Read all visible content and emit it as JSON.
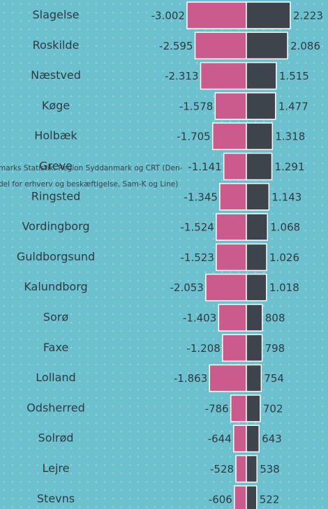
{
  "chart_data": {
    "type": "diverging-bar",
    "categories": [
      "Slagelse",
      "Roskilde",
      "Næstved",
      "Køge",
      "Holbæk",
      "Greve",
      "Ringsted",
      "Vordingborg",
      "Guldborgsund",
      "Kalundborg",
      "Sorø",
      "Faxe",
      "Lolland",
      "Odsherred",
      "Solrød",
      "Lejre",
      "Stevns"
    ],
    "series": [
      {
        "color": "#cc5b8d",
        "values": [
          -3002,
          -2595,
          -2313,
          -1578,
          -1705,
          -1141,
          -1345,
          -1524,
          -1523,
          -2053,
          -1403,
          -1208,
          -1863,
          -786,
          -644,
          -528,
          -606
        ],
        "value_labels": [
          "-3.002",
          "-2.595",
          "-2.313",
          "-1.578",
          "-1.705",
          "-1.141",
          "-1.345",
          "-1.524",
          "-1.523",
          "-2.053",
          "-1.403",
          "-1.208",
          "-1.863",
          "-786",
          "-644",
          "-528",
          "-606"
        ]
      },
      {
        "color": "#3e444c",
        "values": [
          2223,
          2086,
          1515,
          1477,
          1318,
          1291,
          1143,
          1068,
          1026,
          1018,
          808,
          798,
          754,
          702,
          643,
          538,
          522
        ],
        "value_labels": [
          "2.223",
          "2.086",
          "1.515",
          "1.477",
          "1.318",
          "1.291",
          "1.143",
          "1.068",
          "1.026",
          "1.018",
          "808",
          "798",
          "754",
          "702",
          "643",
          "538",
          "522"
        ]
      }
    ],
    "annotations": [
      "marks Statistik, Region Syddanmark og CRT (Den-",
      "del for erhverv og beskæftigelse, Sam-K og Line)"
    ]
  }
}
